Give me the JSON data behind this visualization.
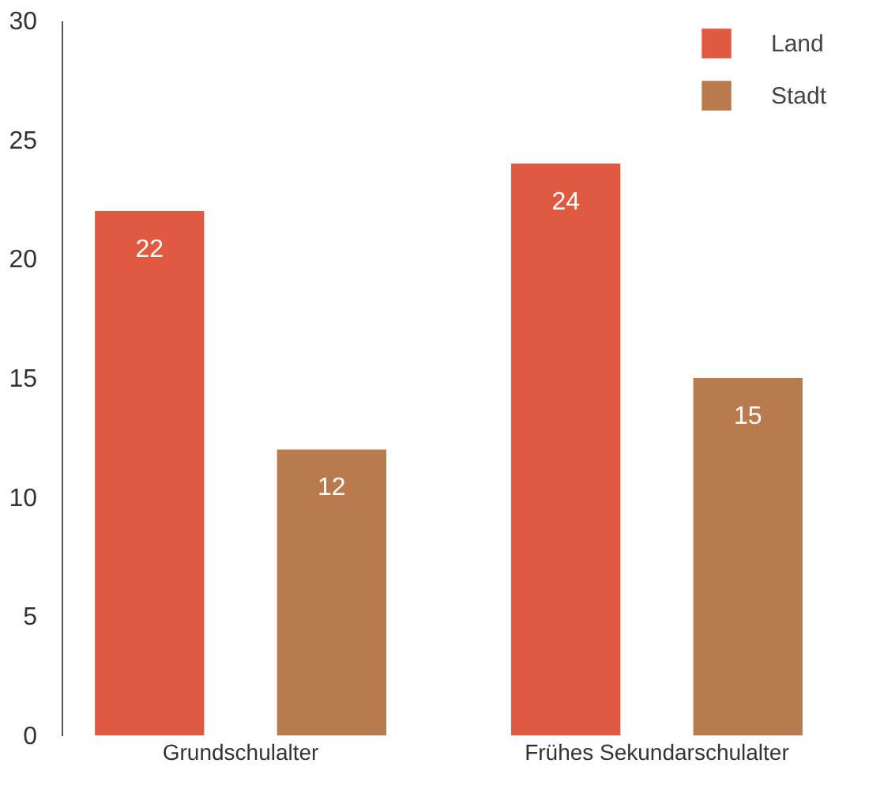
{
  "chart_data": {
    "type": "bar",
    "categories": [
      "Grundschulalter",
      "Frühes Sekundarschulalter"
    ],
    "series": [
      {
        "name": "Land",
        "color": "#df5a40",
        "values": [
          22,
          24
        ]
      },
      {
        "name": "Stadt",
        "color": "#b97a4e",
        "values": [
          12,
          15
        ]
      }
    ],
    "ylim": [
      0,
      30
    ],
    "yticks": [
      0,
      5,
      10,
      15,
      20,
      25,
      30
    ],
    "data_labels": true,
    "grid": false,
    "legend": "top right"
  }
}
